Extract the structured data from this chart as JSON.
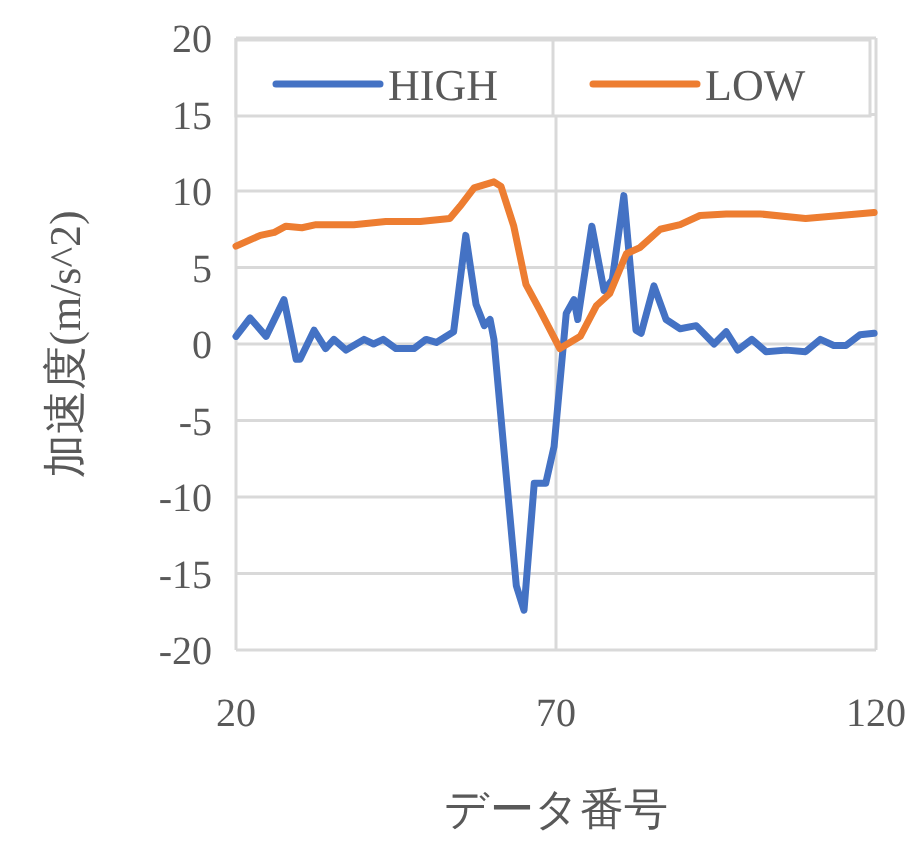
{
  "chart_data": {
    "type": "line",
    "xlabel": "データ番号",
    "ylabel": "加速度(m/s^2)",
    "xlim": [
      20,
      120
    ],
    "xticks": [
      20,
      70,
      120
    ],
    "ylim": [
      -20,
      20
    ],
    "yticks": [
      -20,
      -15,
      -10,
      -5,
      0,
      5,
      10,
      15,
      20
    ],
    "grid": true,
    "legend": "top",
    "marker": "none",
    "line_style": "solid",
    "series": [
      {
        "name": "HIGH",
        "color": "#4472c4",
        "x": [
          20,
          22.2,
          24.7,
          27.5,
          29.4,
          30,
          32.2,
          34,
          35.3,
          37.2,
          40,
          41.5,
          43,
          45,
          47.8,
          49.7,
          51.3,
          54,
          55.9,
          57.5,
          58.8,
          59.7,
          60.3,
          62.2,
          63.8,
          65,
          66.6,
          68.4,
          69.7,
          71.6,
          72.8,
          73.4,
          75.6,
          77.5,
          78.8,
          80.6,
          82.5,
          83.3,
          85.3,
          87.2,
          89.4,
          91.9,
          94.7,
          96.6,
          98.4,
          100.6,
          102.8,
          106,
          109,
          111.3,
          113.4,
          115.3,
          117.5,
          119.7
        ],
        "values": [
          0.5,
          1.7,
          0.5,
          2.9,
          -1.0,
          -1.0,
          0.9,
          -0.3,
          0.3,
          -0.4,
          0.3,
          0,
          0.3,
          -0.3,
          -0.3,
          0.3,
          0.1,
          0.8,
          7.1,
          2.6,
          1.2,
          1.6,
          0.3,
          -8.5,
          -15.8,
          -17.4,
          -9.1,
          -9.1,
          -6.7,
          2.0,
          2.9,
          1.6,
          7.7,
          3.5,
          4.2,
          9.7,
          0.9,
          0.7,
          3.8,
          1.6,
          1.0,
          1.2,
          0,
          0.8,
          -0.4,
          0.3,
          -0.5,
          -0.4,
          -0.5,
          0.3,
          -0.1,
          -0.1,
          0.6,
          0.7
        ]
      },
      {
        "name": "LOW",
        "color": "#ed7d31",
        "x": [
          20,
          23.8,
          26,
          27.8,
          30.3,
          32.5,
          38.4,
          43.4,
          48.8,
          53.4,
          55,
          57.2,
          60.3,
          61.4,
          63.4,
          65.3,
          67.5,
          70.6,
          73.8,
          76.3,
          78.4,
          81,
          83.1,
          86.3,
          89.4,
          92.5,
          96.6,
          101.9,
          109,
          114.4,
          119.7
        ],
        "values": [
          6.4,
          7.1,
          7.3,
          7.7,
          7.6,
          7.8,
          7.8,
          8.0,
          8.0,
          8.2,
          9.0,
          10.2,
          10.6,
          10.3,
          7.7,
          3.9,
          2.2,
          -0.3,
          0.5,
          2.5,
          3.3,
          5.9,
          6.3,
          7.5,
          7.8,
          8.4,
          8.5,
          8.5,
          8.2,
          8.4,
          8.6
        ]
      }
    ]
  }
}
